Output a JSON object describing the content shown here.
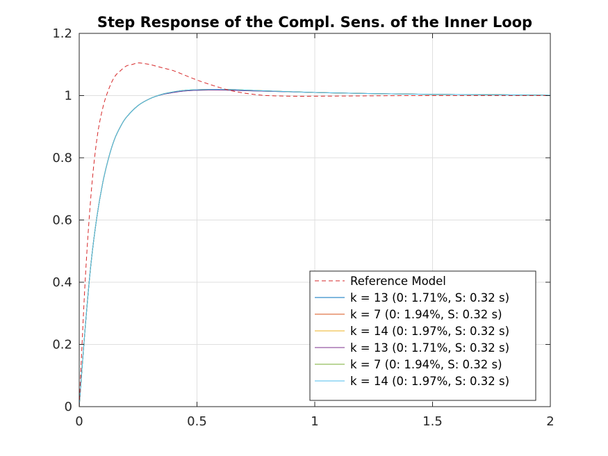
{
  "chart_data": {
    "type": "line",
    "title": "Step Response of the Compl. Sens. of the Inner Loop",
    "xlabel": "",
    "ylabel": "",
    "xlim": [
      0,
      2
    ],
    "ylim": [
      0,
      1.2
    ],
    "xticks": [
      0,
      0.5,
      1,
      1.5,
      2
    ],
    "xtick_labels": [
      "0",
      "0.5",
      "1",
      "1.5",
      "2"
    ],
    "yticks": [
      0,
      0.2,
      0.4,
      0.6,
      0.8,
      1,
      1.2
    ],
    "ytick_labels": [
      "0",
      "0.2",
      "0.4",
      "0.6",
      "0.8",
      "1",
      "1.2"
    ],
    "grid": true,
    "legend_position": "bottom-right",
    "series": [
      {
        "name": "Reference Model",
        "color": "#d62728",
        "style": "dashed",
        "x": [
          0,
          0.025,
          0.05,
          0.075,
          0.1,
          0.125,
          0.15,
          0.175,
          0.2,
          0.225,
          0.25,
          0.275,
          0.3,
          0.325,
          0.35,
          0.4,
          0.45,
          0.5,
          0.55,
          0.6,
          0.65,
          0.7,
          0.75,
          0.8,
          0.9,
          1.0,
          1.2,
          1.4,
          1.6,
          1.8,
          2.0
        ],
        "y": [
          0,
          0.4,
          0.68,
          0.86,
          0.96,
          1.02,
          1.06,
          1.08,
          1.095,
          1.1,
          1.105,
          1.103,
          1.1,
          1.095,
          1.09,
          1.08,
          1.065,
          1.05,
          1.037,
          1.025,
          1.015,
          1.008,
          1.003,
          1.0,
          0.998,
          0.998,
          0.999,
          1.0,
          1.0,
          1.0,
          1.0
        ]
      },
      {
        "name": "k = 13 (0: 1.71%, S: 0.32 s)",
        "color": "#0072bd",
        "style": "solid",
        "x": [
          0,
          0.025,
          0.05,
          0.075,
          0.1,
          0.125,
          0.15,
          0.175,
          0.2,
          0.25,
          0.3,
          0.35,
          0.4,
          0.45,
          0.5,
          0.6,
          0.7,
          0.8,
          1.0,
          1.2,
          1.5,
          1.7,
          2.0
        ],
        "y": [
          0,
          0.25,
          0.46,
          0.61,
          0.72,
          0.8,
          0.86,
          0.9,
          0.93,
          0.968,
          0.99,
          1.003,
          1.01,
          1.015,
          1.017,
          1.018,
          1.016,
          1.014,
          1.01,
          1.007,
          1.004,
          1.003,
          1.001
        ]
      },
      {
        "name": "k = 7 (0: 1.94%, S: 0.32 s)",
        "color": "#d95319",
        "style": "solid",
        "x": [
          0,
          0.025,
          0.05,
          0.075,
          0.1,
          0.125,
          0.15,
          0.175,
          0.2,
          0.25,
          0.3,
          0.35,
          0.4,
          0.45,
          0.5,
          0.6,
          0.7,
          0.8,
          1.0,
          1.2,
          1.5,
          1.7,
          2.0
        ],
        "y": [
          0,
          0.25,
          0.46,
          0.61,
          0.72,
          0.8,
          0.86,
          0.9,
          0.93,
          0.968,
          0.99,
          1.004,
          1.012,
          1.017,
          1.019,
          1.02,
          1.018,
          1.015,
          1.01,
          1.007,
          1.004,
          1.003,
          1.001
        ]
      },
      {
        "name": "k = 14 (0: 1.97%, S: 0.32 s)",
        "color": "#edb120",
        "style": "solid",
        "x": [
          0,
          0.025,
          0.05,
          0.075,
          0.1,
          0.125,
          0.15,
          0.175,
          0.2,
          0.25,
          0.3,
          0.35,
          0.4,
          0.45,
          0.5,
          0.6,
          0.7,
          0.8,
          1.0,
          1.2,
          1.5,
          1.7,
          2.0
        ],
        "y": [
          0,
          0.25,
          0.46,
          0.61,
          0.72,
          0.8,
          0.86,
          0.9,
          0.93,
          0.968,
          0.99,
          1.004,
          1.012,
          1.017,
          1.019,
          1.02,
          1.018,
          1.015,
          1.01,
          1.007,
          1.004,
          1.003,
          1.001
        ]
      },
      {
        "name": "k = 13 (0: 1.71%, S: 0.32 s)",
        "color": "#7e2f8e",
        "style": "solid",
        "x": [
          0,
          0.025,
          0.05,
          0.075,
          0.1,
          0.125,
          0.15,
          0.175,
          0.2,
          0.25,
          0.3,
          0.35,
          0.4,
          0.45,
          0.5,
          0.6,
          0.7,
          0.8,
          1.0,
          1.2,
          1.5,
          1.7,
          2.0
        ],
        "y": [
          0,
          0.25,
          0.46,
          0.61,
          0.72,
          0.8,
          0.86,
          0.9,
          0.93,
          0.968,
          0.99,
          1.003,
          1.01,
          1.015,
          1.017,
          1.018,
          1.016,
          1.014,
          1.01,
          1.007,
          1.004,
          1.003,
          1.001
        ]
      },
      {
        "name": "k = 7 (0: 1.94%, S: 0.32 s)",
        "color": "#77ac30",
        "style": "solid",
        "x": [
          0,
          0.025,
          0.05,
          0.075,
          0.1,
          0.125,
          0.15,
          0.175,
          0.2,
          0.25,
          0.3,
          0.35,
          0.4,
          0.45,
          0.5,
          0.6,
          0.7,
          0.8,
          1.0,
          1.2,
          1.5,
          1.7,
          2.0
        ],
        "y": [
          0,
          0.25,
          0.46,
          0.61,
          0.72,
          0.8,
          0.86,
          0.9,
          0.93,
          0.968,
          0.99,
          1.004,
          1.012,
          1.017,
          1.019,
          1.02,
          1.018,
          1.015,
          1.01,
          1.007,
          1.004,
          1.003,
          1.001
        ]
      },
      {
        "name": "k = 14 (0: 1.97%, S: 0.32 s)",
        "color": "#4dbeee",
        "style": "solid",
        "x": [
          0,
          0.025,
          0.05,
          0.075,
          0.1,
          0.125,
          0.15,
          0.175,
          0.2,
          0.25,
          0.3,
          0.35,
          0.4,
          0.45,
          0.5,
          0.6,
          0.7,
          0.8,
          1.0,
          1.2,
          1.5,
          1.7,
          2.0
        ],
        "y": [
          0,
          0.25,
          0.46,
          0.61,
          0.72,
          0.8,
          0.86,
          0.9,
          0.93,
          0.968,
          0.99,
          1.004,
          1.012,
          1.017,
          1.019,
          1.02,
          1.018,
          1.015,
          1.01,
          1.007,
          1.004,
          1.003,
          1.001
        ]
      }
    ]
  }
}
